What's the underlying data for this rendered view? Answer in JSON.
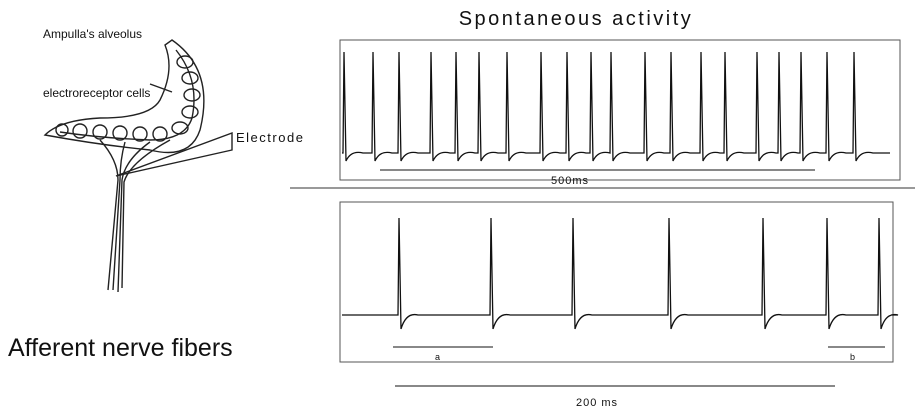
{
  "title": "Spontaneous activity",
  "labels": {
    "alveolus": "Ampulla's alveolus",
    "cells": "electroreceptor cells",
    "electrode": "Electrode",
    "nerve": "Afferent nerve fibers"
  },
  "top_trace": {
    "scale": "500ms"
  },
  "bottom_trace": {
    "marker_a": "a",
    "marker_b": "b",
    "scale": "200 ms"
  }
}
